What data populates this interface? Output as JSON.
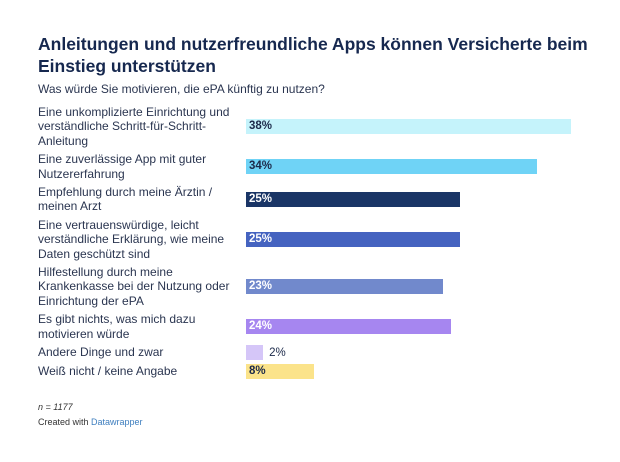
{
  "chart_data": {
    "type": "bar",
    "orientation": "horizontal",
    "title": "Anleitungen und nutzerfreundliche Apps können Versicherte beim Einstieg unterstützen",
    "subtitle": "Was würde Sie motivieren, die ePA künftig zu nutzen?",
    "categories": [
      "Eine unkomplizierte Einrichtung und verständliche Schritt-für-Schritt-Anleitung",
      "Eine zuverlässige App mit guter Nutzererfahrung",
      "Empfehlung durch meine Ärztin / meinen Arzt",
      "Eine vertrauenswürdige, leicht verständliche Erklärung, wie meine Daten geschützt sind",
      "Hilfestellung durch meine Krankenkasse bei der Nutzung oder Einrichtung der ePA",
      "Es gibt nichts, was mich dazu motivieren würde",
      "Andere Dinge und zwar",
      "Weiß nicht / keine Angabe"
    ],
    "values": [
      38,
      34,
      25,
      25,
      23,
      24,
      2,
      8
    ],
    "labels": [
      "38%",
      "34%",
      "25%",
      "25%",
      "23%",
      "24%",
      "2%",
      "8%"
    ],
    "unit": "%",
    "xlim": [
      0,
      38
    ],
    "colors": [
      "#c5f3fb",
      "#6fd3f6",
      "#1a3566",
      "#4563c0",
      "#7189cc",
      "#a686f0",
      "#d5c6f8",
      "#fbe38a"
    ],
    "label_colors": [
      "#1c2a4a",
      "#1c2a4a",
      "#ffffff",
      "#ffffff",
      "#ffffff",
      "#ffffff",
      "#1c2a4a",
      "#1c2a4a"
    ],
    "grid": false,
    "legend": "none"
  },
  "footer": {
    "note": "n = 1177",
    "credit_prefix": "Created with ",
    "credit_link": "Datawrapper"
  }
}
